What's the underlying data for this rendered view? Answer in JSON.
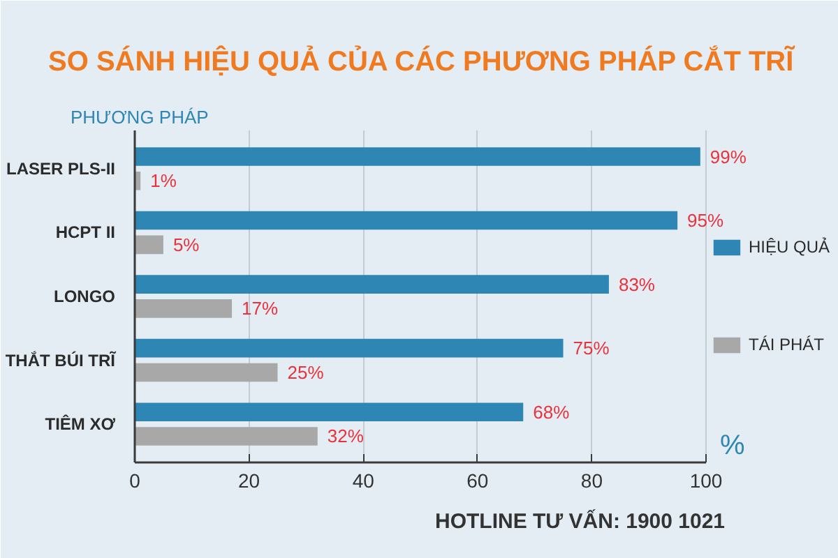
{
  "chart_data": {
    "type": "bar",
    "orientation": "horizontal",
    "title": "SO SÁNH HIỆU QUẢ CỦA CÁC PHƯƠNG PHÁP CẮT TRĨ",
    "ylabel": "PHƯƠNG PHÁP",
    "xlabel": "%",
    "categories": [
      "LASER PLS-II",
      "HCPT II",
      "LONGO",
      "THẮT BÚI TRĨ",
      "TIÊM XƠ"
    ],
    "series": [
      {
        "name": "HIỆU QUẢ",
        "color": "#2e86b5",
        "values": [
          99,
          95,
          83,
          75,
          68
        ],
        "value_labels": [
          "99%",
          "95%",
          "83%",
          "75%",
          "68%"
        ]
      },
      {
        "name": "TÁI PHÁT",
        "color": "#a8a8a8",
        "values": [
          1,
          5,
          17,
          25,
          32
        ],
        "value_labels": [
          "1%",
          "5%",
          "17%",
          "25%",
          "32%"
        ]
      }
    ],
    "xlim": [
      0,
      100
    ],
    "xticks": [
      0,
      20,
      40,
      60,
      80,
      100
    ],
    "grid": "x",
    "legend": "right",
    "annotations": [
      "HOTLINE TƯ VẤN: 1900 1021"
    ]
  }
}
